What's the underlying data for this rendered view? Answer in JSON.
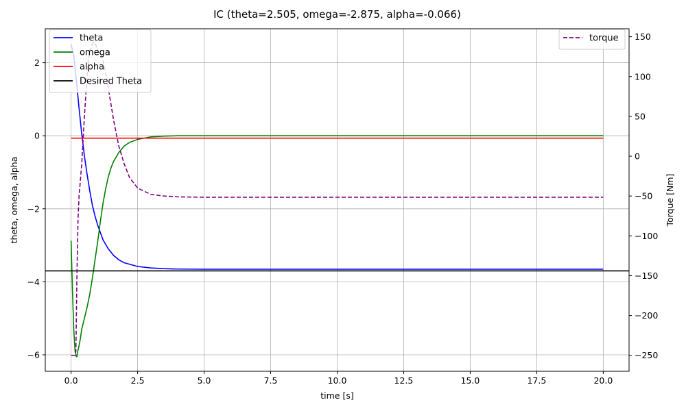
{
  "chart_data": {
    "type": "line",
    "title": "IC (theta=2.505, omega=-2.875, alpha=-0.066)",
    "xlabel": "time [s]",
    "ylabel": "theta, omega, alpha",
    "y2label": "Torque [Nm]",
    "xlim": [
      -0.97,
      20.97
    ],
    "ylim": [
      -6.45,
      2.93
    ],
    "y2lim": [
      -270,
      160
    ],
    "xticks": [
      0.0,
      2.5,
      5.0,
      7.5,
      10.0,
      12.5,
      15.0,
      17.5,
      20.0
    ],
    "xtick_labels": [
      "0.0",
      "2.5",
      "5.0",
      "7.5",
      "10.0",
      "12.5",
      "15.0",
      "17.5",
      "20.0"
    ],
    "yticks": [
      -6,
      -4,
      -2,
      0,
      2
    ],
    "ytick_labels": [
      "−6",
      "−4",
      "−2",
      "0",
      "2"
    ],
    "y2ticks": [
      -250,
      -200,
      -150,
      -100,
      -50,
      0,
      50,
      100,
      150
    ],
    "y2tick_labels": [
      "−250",
      "−200",
      "−150",
      "−100",
      "−50",
      "0",
      "50",
      "100",
      "150"
    ],
    "grid": true,
    "legend_left_position": "upper-left",
    "legend_right_position": "upper-right",
    "series": [
      {
        "name": "theta",
        "axis": "left",
        "color": "#0000ff",
        "style": "solid",
        "x": [
          0.0,
          0.1,
          0.2,
          0.3,
          0.4,
          0.5,
          0.6,
          0.7,
          0.8,
          0.9,
          1.0,
          1.2,
          1.4,
          1.6,
          1.8,
          2.0,
          2.5,
          3.0,
          3.5,
          4.0,
          5.0,
          6.0,
          8.0,
          10.0,
          12.0,
          14.0,
          16.0,
          18.0,
          20.0
        ],
        "y": [
          2.505,
          2.2,
          1.5,
          0.75,
          0.05,
          -0.55,
          -1.05,
          -1.5,
          -1.9,
          -2.2,
          -2.45,
          -2.85,
          -3.1,
          -3.28,
          -3.4,
          -3.48,
          -3.58,
          -3.62,
          -3.64,
          -3.65,
          -3.655,
          -3.655,
          -3.655,
          -3.655,
          -3.655,
          -3.655,
          -3.655,
          -3.655,
          -3.655
        ]
      },
      {
        "name": "omega",
        "axis": "left",
        "color": "#008000",
        "style": "solid",
        "x": [
          0.0,
          0.05,
          0.1,
          0.15,
          0.2,
          0.22,
          0.25,
          0.3,
          0.35,
          0.4,
          0.5,
          0.6,
          0.7,
          0.8,
          0.9,
          1.0,
          1.1,
          1.2,
          1.3,
          1.4,
          1.5,
          1.6,
          1.8,
          2.0,
          2.2,
          2.5,
          3.0,
          3.5,
          4.0,
          5.0,
          6.0,
          8.0,
          10.0,
          12.0,
          14.0,
          16.0,
          18.0,
          20.0
        ],
        "y": [
          -2.875,
          -4.2,
          -5.3,
          -5.9,
          -6.05,
          -6.05,
          -5.9,
          -5.75,
          -5.55,
          -5.3,
          -5.0,
          -4.7,
          -4.35,
          -3.9,
          -3.4,
          -2.9,
          -2.35,
          -1.85,
          -1.45,
          -1.12,
          -0.88,
          -0.7,
          -0.45,
          -0.28,
          -0.18,
          -0.1,
          -0.03,
          -0.01,
          0.0,
          0.0,
          0.0,
          0.0,
          0.0,
          0.0,
          0.0,
          0.0,
          0.0,
          0.0
        ]
      },
      {
        "name": "alpha",
        "axis": "left",
        "color": "#ff0000",
        "style": "solid",
        "x": [
          0.0,
          20.0
        ],
        "y": [
          -0.066,
          -0.066
        ]
      },
      {
        "name": "Desired Theta",
        "axis": "left",
        "color": "#000000",
        "style": "hline",
        "y_value": -3.7
      }
    ],
    "series_right": [
      {
        "name": "torque",
        "axis": "right",
        "color": "#800080",
        "style": "dashed",
        "x": [
          0.0,
          0.05,
          0.1,
          0.15,
          0.18,
          0.22,
          0.26,
          0.3,
          0.35,
          0.4,
          0.45,
          0.5,
          0.55,
          0.6,
          0.65,
          0.7,
          0.8,
          0.85,
          0.9,
          0.95,
          1.0,
          1.05,
          1.1,
          1.15,
          1.2,
          1.3,
          1.4,
          1.5,
          1.6,
          1.7,
          1.8,
          2.0,
          2.2,
          2.5,
          3.0,
          3.5,
          4.0,
          5.0,
          6.0,
          8.0,
          10.0,
          12.0,
          14.0,
          16.0,
          18.0,
          20.0
        ],
        "y": [
          -250,
          -250,
          -250,
          -250,
          -245,
          -150,
          -80,
          -50,
          -30,
          -10,
          20,
          50,
          75,
          100,
          120,
          132,
          141,
          143,
          142,
          138,
          133,
          130,
          128,
          125,
          120,
          105,
          85,
          65,
          45,
          28,
          12,
          -10,
          -27,
          -40,
          -48,
          -50,
          -51,
          -51.5,
          -51.5,
          -51.5,
          -51.5,
          -51.5,
          -51.5,
          -51.5,
          -51.5,
          -51.5
        ]
      }
    ]
  }
}
